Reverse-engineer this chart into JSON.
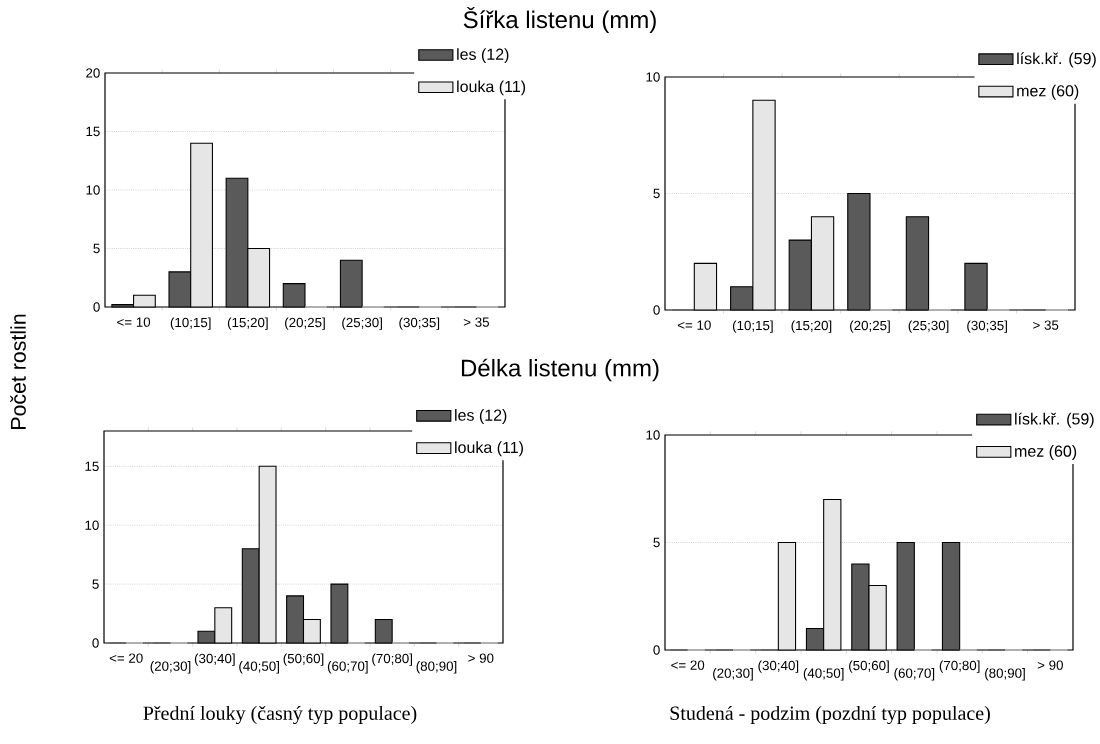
{
  "chart_data": [
    {
      "type": "bar",
      "title": "Šířka listenu (mm)",
      "ylabel": "Počet rostlin",
      "categories": [
        "<= 10",
        "(10;15]",
        "(15;20]",
        "(20;25]",
        "(25;30]",
        "(30;35]",
        "> 35"
      ],
      "series": [
        {
          "name": "les (12)",
          "color": "#5a5a5a",
          "values": [
            0.2,
            3,
            11,
            2,
            4,
            0,
            0
          ]
        },
        {
          "name": "louka (11)",
          "color": "#e6e6e6",
          "values": [
            1,
            14,
            5,
            0,
            0,
            0,
            0
          ]
        }
      ],
      "ylim": [
        0,
        20
      ],
      "yticks": [
        0,
        5,
        10,
        15,
        20
      ],
      "grid": "y",
      "legend": "top right"
    },
    {
      "type": "bar",
      "categories": [
        "<= 10",
        "(10;15]",
        "(15;20]",
        "(20;25]",
        "(25;30]",
        "(30;35]",
        "> 35"
      ],
      "series": [
        {
          "name": "lísk.kř. (59)",
          "color": "#5a5a5a",
          "values": [
            0,
            1,
            3,
            5,
            4,
            2,
            0
          ]
        },
        {
          "name": "mez (60)",
          "color": "#e6e6e6",
          "values": [
            2,
            9,
            4,
            0,
            0,
            0,
            0
          ]
        }
      ],
      "ylim": [
        0,
        10
      ],
      "yticks": [
        0,
        5,
        10
      ],
      "grid": "y",
      "legend": "top right"
    },
    {
      "type": "bar",
      "title": "Délka listenu (mm)",
      "annotations": [
        "Přední louky (časný typ populace)"
      ],
      "categories": [
        "<= 20",
        "(20;30]",
        "(30;40]",
        "(40;50]",
        "(50;60]",
        "(60;70]",
        "(70;80]",
        "(80;90]",
        "> 90"
      ],
      "series": [
        {
          "name": "les (12)",
          "color": "#5a5a5a",
          "values": [
            0,
            0,
            1,
            8,
            4,
            5,
            2,
            0,
            0
          ]
        },
        {
          "name": "louka (11)",
          "color": "#e6e6e6",
          "values": [
            0,
            0,
            3,
            15,
            2,
            0,
            0,
            0,
            0
          ]
        }
      ],
      "ylim": [
        0,
        18
      ],
      "yticks": [
        0,
        5,
        10,
        15
      ],
      "grid": "y",
      "legend": "top right"
    },
    {
      "type": "bar",
      "annotations": [
        "Studená - podzim (pozdní typ populace)"
      ],
      "categories": [
        "<= 20",
        "(20;30]",
        "(30;40]",
        "(40;50]",
        "(50;60]",
        "(60;70]",
        "(70;80]",
        "(80;90]",
        "> 90"
      ],
      "series": [
        {
          "name": "lísk.kř. (59)",
          "color": "#5a5a5a",
          "values": [
            0,
            0,
            0,
            1,
            4,
            5,
            5,
            0,
            0
          ]
        },
        {
          "name": "mez (60)",
          "color": "#e6e6e6",
          "values": [
            0,
            0,
            5,
            7,
            3,
            0,
            0,
            0,
            0
          ]
        }
      ],
      "ylim": [
        0,
        10
      ],
      "yticks": [
        0,
        5,
        10
      ],
      "grid": "y",
      "legend": "top right"
    }
  ]
}
